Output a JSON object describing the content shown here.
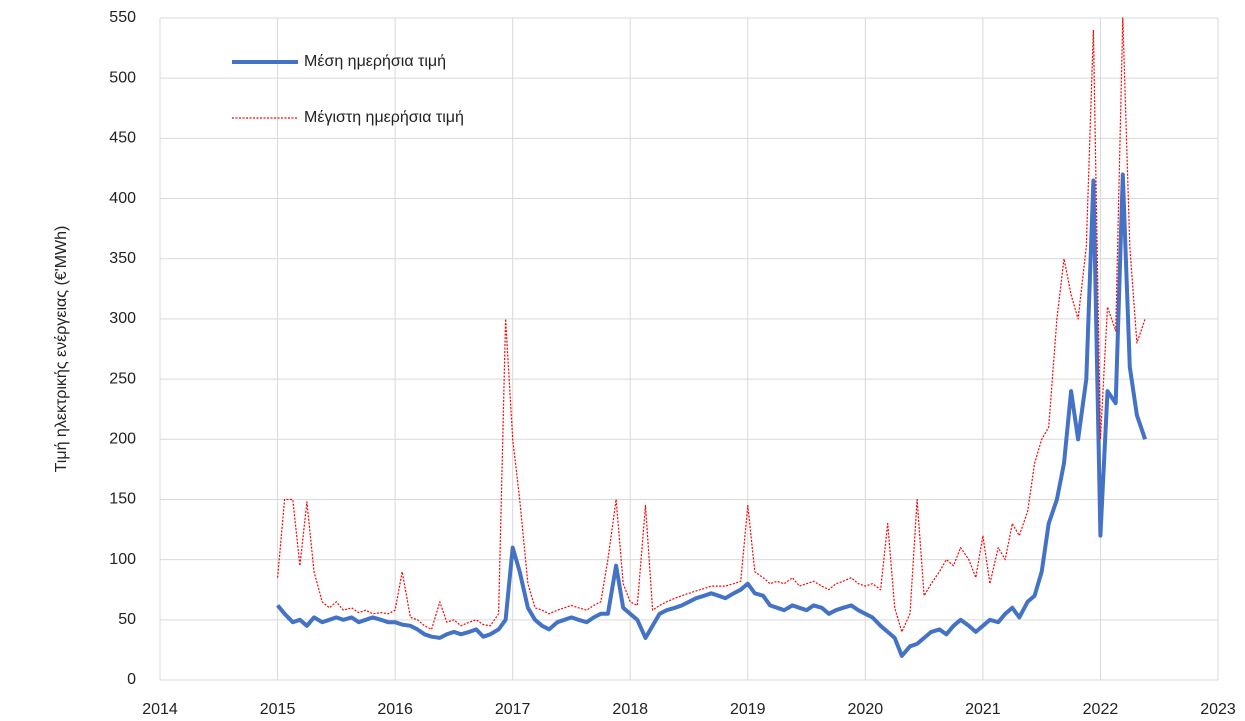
{
  "chart_data": {
    "type": "line",
    "y_label": "Τιμή ηλεκτρικής ενέργειας (€'MWh)",
    "x": [
      2015.0,
      2015.06,
      2015.13,
      2015.19,
      2015.25,
      2015.31,
      2015.38,
      2015.44,
      2015.5,
      2015.56,
      2015.63,
      2015.69,
      2015.75,
      2015.81,
      2015.88,
      2015.94,
      2016.0,
      2016.06,
      2016.13,
      2016.19,
      2016.25,
      2016.31,
      2016.38,
      2016.44,
      2016.5,
      2016.56,
      2016.63,
      2016.69,
      2016.75,
      2016.81,
      2016.88,
      2016.94,
      2017.0,
      2017.06,
      2017.13,
      2017.19,
      2017.25,
      2017.31,
      2017.38,
      2017.44,
      2017.5,
      2017.56,
      2017.63,
      2017.69,
      2017.75,
      2017.81,
      2017.88,
      2017.94,
      2018.0,
      2018.06,
      2018.13,
      2018.19,
      2018.25,
      2018.31,
      2018.38,
      2018.44,
      2018.5,
      2018.56,
      2018.63,
      2018.69,
      2018.75,
      2018.81,
      2018.88,
      2018.94,
      2019.0,
      2019.06,
      2019.13,
      2019.19,
      2019.25,
      2019.31,
      2019.38,
      2019.44,
      2019.5,
      2019.56,
      2019.63,
      2019.69,
      2019.75,
      2019.81,
      2019.88,
      2019.94,
      2020.0,
      2020.06,
      2020.13,
      2020.19,
      2020.25,
      2020.31,
      2020.38,
      2020.44,
      2020.5,
      2020.56,
      2020.63,
      2020.69,
      2020.75,
      2020.81,
      2020.88,
      2020.94,
      2021.0,
      2021.06,
      2021.13,
      2021.19,
      2021.25,
      2021.31,
      2021.38,
      2021.44,
      2021.5,
      2021.56,
      2021.63,
      2021.69,
      2021.75,
      2021.81,
      2021.88,
      2021.94,
      2022.0,
      2022.06,
      2022.13,
      2022.19,
      2022.25,
      2022.31,
      2022.38
    ],
    "series": [
      {
        "name": "Μέση ημερήσια τιμή",
        "color": "#4472c4",
        "line_style": "solid",
        "values": [
          62,
          55,
          48,
          50,
          45,
          52,
          48,
          50,
          52,
          50,
          52,
          48,
          50,
          52,
          50,
          48,
          48,
          46,
          45,
          42,
          38,
          36,
          35,
          38,
          40,
          38,
          40,
          42,
          36,
          38,
          42,
          50,
          110,
          90,
          60,
          50,
          45,
          42,
          48,
          50,
          52,
          50,
          48,
          52,
          55,
          55,
          95,
          60,
          55,
          50,
          35,
          45,
          55,
          58,
          60,
          62,
          65,
          68,
          70,
          72,
          70,
          68,
          72,
          75,
          80,
          72,
          70,
          62,
          60,
          58,
          62,
          60,
          58,
          62,
          60,
          55,
          58,
          60,
          62,
          58,
          55,
          52,
          45,
          40,
          35,
          20,
          28,
          30,
          35,
          40,
          42,
          38,
          45,
          50,
          45,
          40,
          45,
          50,
          48,
          55,
          60,
          52,
          65,
          70,
          90,
          130,
          150,
          180,
          240,
          200,
          250,
          415,
          120,
          240,
          230,
          420,
          260,
          220,
          200
        ]
      },
      {
        "name": "Μέγιστη ημερήσια τιμή",
        "color": "#ff0000",
        "line_style": "dotted",
        "values": [
          85,
          150,
          150,
          95,
          148,
          90,
          65,
          60,
          65,
          58,
          60,
          56,
          58,
          55,
          56,
          55,
          58,
          90,
          52,
          50,
          45,
          42,
          65,
          48,
          50,
          45,
          48,
          50,
          46,
          45,
          55,
          300,
          200,
          150,
          80,
          60,
          58,
          55,
          58,
          60,
          62,
          60,
          58,
          62,
          65,
          100,
          150,
          80,
          65,
          62,
          145,
          58,
          62,
          65,
          68,
          70,
          72,
          74,
          76,
          78,
          78,
          78,
          80,
          82,
          145,
          90,
          85,
          80,
          82,
          80,
          85,
          78,
          80,
          82,
          78,
          75,
          80,
          82,
          85,
          80,
          78,
          80,
          75,
          130,
          60,
          40,
          55,
          150,
          70,
          80,
          90,
          100,
          95,
          110,
          100,
          85,
          120,
          80,
          110,
          100,
          130,
          120,
          140,
          180,
          200,
          210,
          300,
          350,
          320,
          300,
          360,
          540,
          200,
          310,
          290,
          550,
          360,
          280,
          300
        ]
      }
    ],
    "xlim": [
      2014,
      2023
    ],
    "xticks": [
      2014,
      2015,
      2016,
      2017,
      2018,
      2019,
      2020,
      2021,
      2022,
      2023
    ],
    "ylim": [
      0,
      550
    ],
    "yticks": [
      0,
      50,
      100,
      150,
      200,
      250,
      300,
      350,
      400,
      450,
      500,
      550
    ],
    "grid": true,
    "legend": "upper left"
  }
}
